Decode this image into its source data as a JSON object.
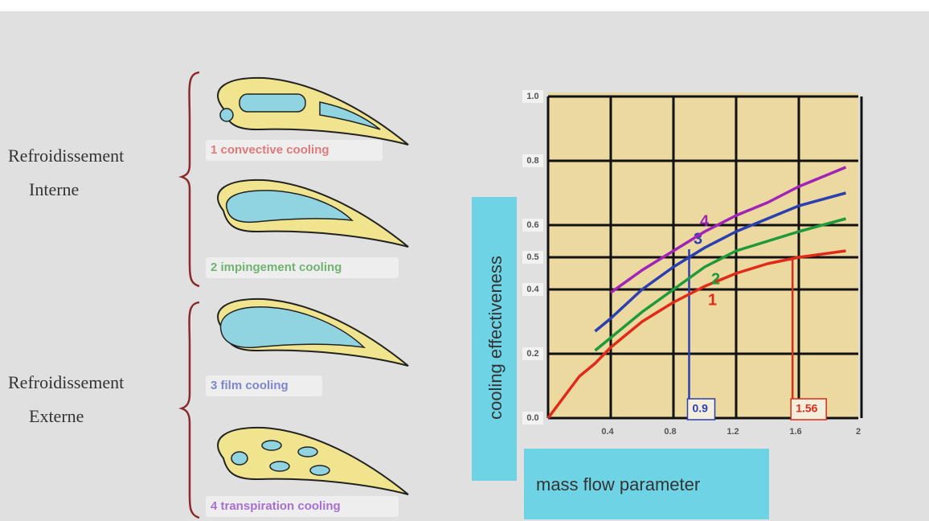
{
  "left_labels": {
    "internal": [
      "Refroidissement",
      "Interne"
    ],
    "external": [
      "Refroidissement",
      "Externe"
    ]
  },
  "cooling_types": [
    {
      "label": "1 convective cooling",
      "color": "#e07a7a"
    },
    {
      "label": "2 impingement cooling",
      "color": "#6fb46f"
    },
    {
      "label": "3 film cooling",
      "color": "#7f86d0"
    },
    {
      "label": "4 transpiration cooling",
      "color": "#a86fd0"
    }
  ],
  "chart_data": {
    "type": "line",
    "y_label": "cooling effectiveness",
    "x_label": "mass flow parameter",
    "x": [
      0,
      0.2,
      0.3,
      0.4,
      0.6,
      0.8,
      1.0,
      1.2,
      1.4,
      1.6,
      1.9
    ],
    "series": [
      {
        "name": "1",
        "color": "#e02a1a",
        "values": [
          0,
          0.13,
          0.17,
          0.22,
          0.3,
          0.36,
          0.41,
          0.45,
          0.48,
          0.5,
          0.52
        ]
      },
      {
        "name": "2",
        "color": "#1f9a3a",
        "values": [
          null,
          null,
          0.21,
          0.25,
          0.33,
          0.4,
          0.47,
          0.52,
          0.55,
          0.58,
          0.62
        ]
      },
      {
        "name": "3",
        "color": "#2c3fb0",
        "values": [
          null,
          null,
          0.27,
          0.31,
          0.4,
          0.47,
          0.53,
          0.58,
          0.62,
          0.66,
          0.7
        ]
      },
      {
        "name": "4",
        "color": "#a024b8",
        "values": [
          null,
          null,
          null,
          0.39,
          0.46,
          0.52,
          0.58,
          0.63,
          0.67,
          0.72,
          0.78
        ]
      }
    ],
    "annotations": [
      {
        "value": 0.9,
        "color": "#2c3fb0"
      },
      {
        "value": 1.56,
        "color": "#e02a1a"
      }
    ],
    "xlim": [
      0,
      2
    ],
    "ylim": [
      0,
      1
    ],
    "xticks": [
      0.4,
      0.8,
      1.2,
      1.6,
      2
    ],
    "yticks": [
      {
        "value": 0,
        "label": "0.0"
      },
      0.2,
      0.4,
      0.5,
      0.6,
      0.8,
      {
        "value": 1,
        "label": "1.0"
      }
    ],
    "grid": true
  }
}
